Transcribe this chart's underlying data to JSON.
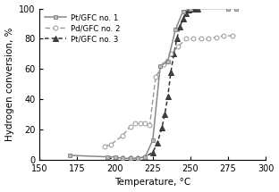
{
  "series": [
    {
      "label": "Pt/GFC no. 1",
      "x": [
        170,
        195,
        200,
        205,
        210,
        215,
        220,
        225,
        230,
        235,
        240,
        245,
        250,
        275,
        280
      ],
      "y": [
        3,
        2,
        2,
        1,
        1,
        1,
        2,
        13,
        62,
        65,
        86,
        98,
        100,
        100,
        100
      ],
      "color": "#888888",
      "linestyle": "-",
      "marker": "s",
      "markerfacecolor": "#bbbbbb",
      "markeredgecolor": "#888888",
      "markersize": 3.5,
      "linewidth": 1.1
    },
    {
      "label": "Pd/GFC no. 2",
      "x": [
        193,
        197,
        205,
        210,
        213,
        217,
        220,
        223,
        227,
        232,
        237,
        242,
        247,
        252,
        257,
        262,
        267,
        272,
        278
      ],
      "y": [
        9,
        10,
        16,
        22,
        24,
        24,
        24,
        23,
        55,
        63,
        70,
        75,
        80,
        80,
        80,
        80,
        81,
        82,
        82
      ],
      "color": "#999999",
      "linestyle": "--",
      "marker": "o",
      "markerfacecolor": "#ffffff",
      "markeredgecolor": "#999999",
      "markersize": 3.5,
      "linewidth": 1.0
    },
    {
      "label": "Pt/GFC no. 3",
      "x": [
        195,
        200,
        205,
        210,
        215,
        220,
        225,
        228,
        231,
        233,
        235,
        237,
        239,
        241,
        243,
        245,
        247,
        249,
        251,
        253,
        255
      ],
      "y": [
        1,
        1,
        1,
        1,
        1,
        2,
        5,
        11,
        21,
        30,
        42,
        58,
        70,
        80,
        88,
        93,
        97,
        99,
        100,
        100,
        100
      ],
      "color": "#333333",
      "linestyle": "--",
      "marker": "^",
      "markerfacecolor": "#444444",
      "markeredgecolor": "#333333",
      "markersize": 4.0,
      "linewidth": 1.1
    }
  ],
  "xlabel": "Temperature, °C",
  "ylabel": "Hydrogen conversion, %",
  "xlim": [
    150,
    300
  ],
  "ylim": [
    0,
    100
  ],
  "xticks": [
    150,
    175,
    200,
    225,
    250,
    275,
    300
  ],
  "yticks": [
    0,
    20,
    40,
    60,
    80,
    100
  ],
  "legend_loc": "upper left",
  "background_color": "#ffffff"
}
